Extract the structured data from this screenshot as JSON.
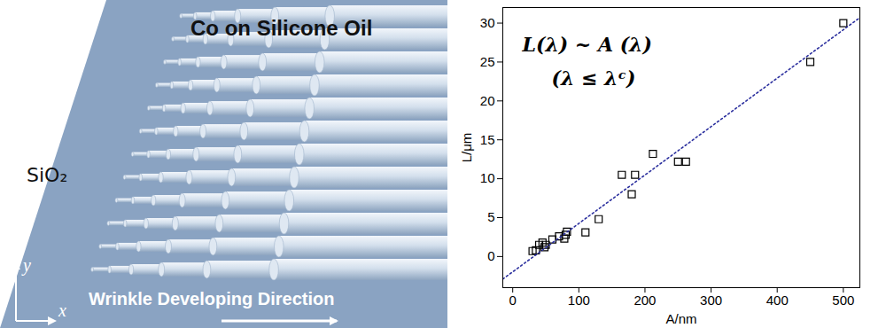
{
  "illustration": {
    "title": "Co on Silicone Oil",
    "substrate": "SiO₂",
    "axes": [
      "y",
      "x"
    ],
    "arrow_label": "Wrinkle Developing Direction"
  },
  "chart_data": {
    "type": "scatter",
    "x_label": "A/nm",
    "y_label": "L/μm",
    "annotations": [
      "L(λ) ~ A (λ)",
      "(λ ≤ λᶜ)"
    ],
    "xlim": [
      -15,
      525
    ],
    "xticks": [
      0,
      100,
      200,
      300,
      400,
      500
    ],
    "ylim": [
      -4,
      32
    ],
    "yticks": [
      0,
      5,
      10,
      15,
      20,
      25,
      30
    ],
    "grid": false,
    "series": [
      {
        "type": "scatter",
        "marker": "square",
        "color": "#000000",
        "x": [
          30,
          35,
          40,
          45,
          48,
          50,
          60,
          70,
          78,
          80,
          82,
          110,
          130,
          165,
          180,
          185,
          212,
          250,
          262,
          450,
          500
        ],
        "values": [
          0.7,
          0.8,
          1.5,
          1.8,
          1.2,
          1.5,
          2.2,
          2.6,
          2.3,
          2.8,
          3.2,
          3.1,
          4.8,
          10.5,
          8,
          10.5,
          13.2,
          12.2,
          12.2,
          25,
          30
        ]
      },
      {
        "type": "line",
        "line_style": "dotted",
        "color": "#2b2f9e",
        "x": [
          -15,
          525
        ],
        "values": [
          -2.9,
          30.7
        ]
      }
    ]
  }
}
